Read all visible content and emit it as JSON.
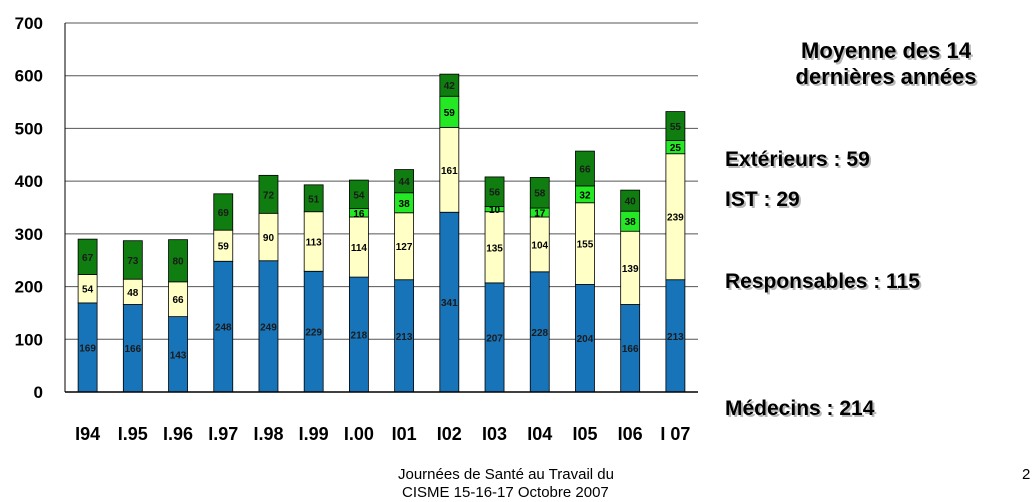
{
  "colors": {
    "medecins": "#1874b8",
    "responsables": "#ffffc6",
    "ist": "#25e825",
    "exterieurs": "#0f7d0f",
    "grid": "#555555",
    "outline": "#000000"
  },
  "chart_data": {
    "type": "bar",
    "stacked": true,
    "title": "",
    "xlabel": "",
    "ylabel": "",
    "ylim": [
      0,
      700
    ],
    "yticks": [
      "0",
      "100",
      "200",
      "300",
      "400",
      "500",
      "600",
      "700"
    ],
    "categories": [
      "I94",
      "I.95",
      "I.96",
      "I.97",
      "I.98",
      "I.99",
      "I.00",
      "I01",
      "I02",
      "I03",
      "I04",
      "I05",
      "I06",
      "I 07"
    ],
    "series": [
      {
        "key": "medecins",
        "values": [
          169,
          166,
          143,
          248,
          249,
          229,
          218,
          213,
          341,
          207,
          228,
          204,
          166,
          213
        ]
      },
      {
        "key": "responsables",
        "values": [
          54,
          48,
          66,
          59,
          90,
          113,
          114,
          127,
          161,
          135,
          104,
          155,
          139,
          239
        ]
      },
      {
        "key": "ist",
        "values": [
          0,
          0,
          0,
          0,
          0,
          0,
          16,
          38,
          59,
          10,
          17,
          32,
          38,
          25
        ]
      },
      {
        "key": "exterieurs",
        "values": [
          67,
          73,
          80,
          69,
          72,
          51,
          54,
          44,
          42,
          56,
          58,
          66,
          40,
          55
        ]
      }
    ],
    "grid": true,
    "legend": "none"
  },
  "side_panel": {
    "title_line1": "Moyenne des 14",
    "title_line2": "dernières années",
    "stats": [
      "Extérieurs : 59",
      "IST : 29",
      "Responsables : 115",
      "Médecins : 214"
    ]
  },
  "footer": {
    "line1": "Journées de Santé au Travail du",
    "line2": "CISME 15-16-17 Octobre 2007",
    "page_number": "2"
  }
}
